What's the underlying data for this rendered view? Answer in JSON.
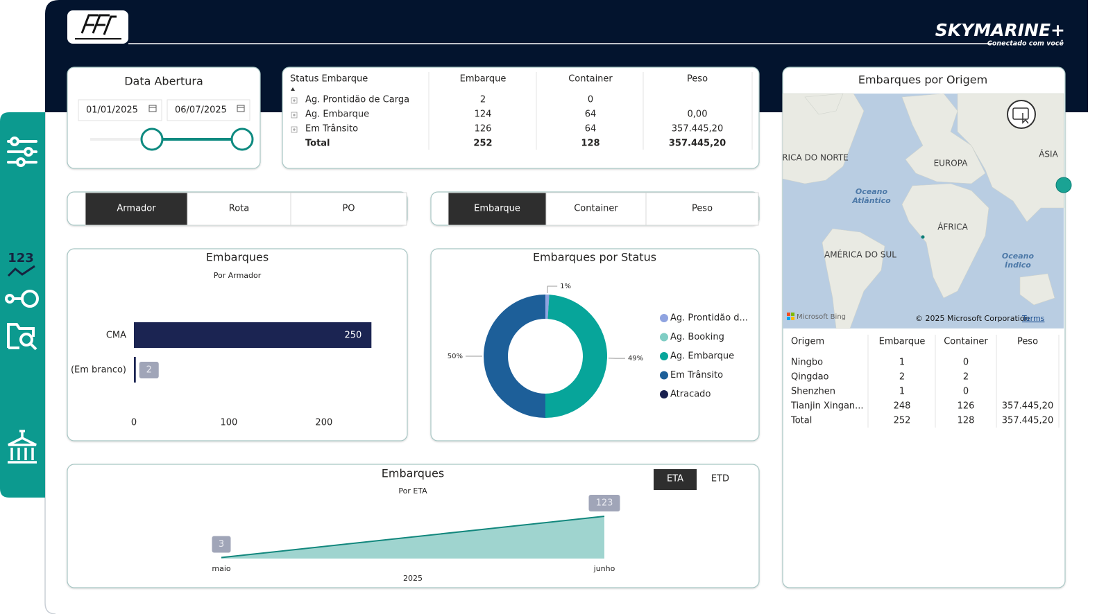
{
  "header": {
    "brand": "SKYMARINE+",
    "tagline": "Conectado com você"
  },
  "sidebar": {
    "metric_icon_text": "123"
  },
  "date_filter": {
    "title": "Data Abertura",
    "start": "01/01/2025",
    "end": "06/07/2025"
  },
  "status_table": {
    "columns": [
      "Status Embarque",
      "Embarque",
      "Container",
      "Peso"
    ],
    "rows": [
      [
        "Ag. Prontidão de Carga",
        "2",
        "0",
        null
      ],
      [
        "Ag. Embarque",
        "124",
        "64",
        "0,00"
      ],
      [
        "Em Trânsito",
        "126",
        "64",
        "357.445,20"
      ]
    ],
    "total": [
      "Total",
      "252",
      "128",
      "357.445,20"
    ]
  },
  "tabs_dimension": {
    "options": [
      "Armador",
      "Rota",
      "PO"
    ],
    "active": 0
  },
  "tabs_measure": {
    "options": [
      "Embarque",
      "Container",
      "Peso"
    ],
    "active": 0
  },
  "eta_toggle": {
    "options": [
      "ETA",
      "ETD"
    ],
    "active": 0
  },
  "map": {
    "title": "Embarques por Origem",
    "labels": [
      "RICA DO NORTE",
      "EUROPA",
      "ÁSIA",
      "Oceano",
      "Atlântico",
      "ÁFRICA",
      "AMÉRICA DO SUL",
      "Oceano",
      "Índico"
    ],
    "attribution": "Microsoft Bing",
    "copyright": "© 2025 Microsoft Corporation",
    "terms": "Terms"
  },
  "origin_table": {
    "columns": [
      "Origem",
      "Embarque",
      "Container",
      "Peso"
    ],
    "rows": [
      [
        "Ningbo",
        "1",
        "0",
        null
      ],
      [
        "Qingdao",
        "2",
        "2",
        null
      ],
      [
        "Shenzhen",
        "1",
        "0",
        null
      ],
      [
        "Tianjin Xingan...",
        "248",
        "126",
        "357.445,20"
      ]
    ],
    "total": [
      "Total",
      "252",
      "128",
      "357.445,20"
    ]
  },
  "chart_data": [
    {
      "type": "bar",
      "orientation": "horizontal",
      "title": "Embarques",
      "subtitle": "Por Armador",
      "categories": [
        "CMA",
        "(Em branco)"
      ],
      "values": [
        250,
        2
      ],
      "color": "#1b2452",
      "xlim": [
        0,
        260
      ],
      "xticks": [
        0,
        100,
        200
      ]
    },
    {
      "type": "pie",
      "donut": true,
      "title": "Embarques por Status",
      "categories": [
        "Ag. Prontidão d...",
        "Ag. Booking",
        "Ag. Embarque",
        "Em Trânsito",
        "Atracado"
      ],
      "values": [
        1,
        0,
        49,
        50,
        0
      ],
      "value_labels": [
        "1%",
        null,
        "49%",
        "50%",
        null
      ],
      "colors": [
        "#8fa3e0",
        "#7fcdc4",
        "#07a59a",
        "#1d5f99",
        "#1a2150"
      ]
    },
    {
      "type": "area",
      "title": "Embarques",
      "subtitle": "Por ETA",
      "x_label": "2025",
      "categories": [
        "maio",
        "junho"
      ],
      "values": [
        3,
        123
      ],
      "ylim": [
        0,
        125
      ],
      "color": "#12877d",
      "fill": "#9fd4cf"
    }
  ]
}
